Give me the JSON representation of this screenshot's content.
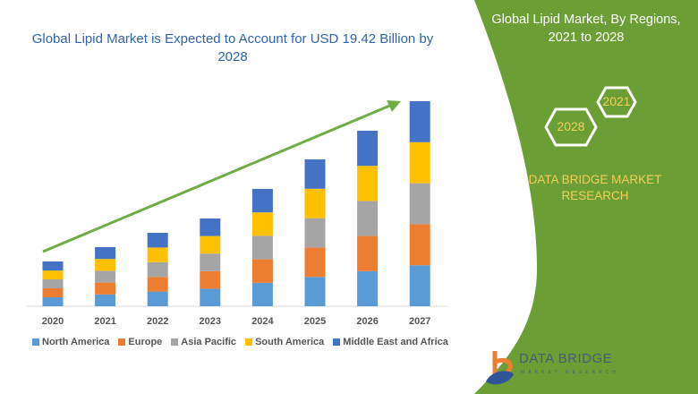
{
  "header": {
    "title": "Global Lipid Market is Expected to Account for USD 19.42 Billion by 2028"
  },
  "side_panel": {
    "title": "Global Lipid Market, By Regions, 2021 to 2028",
    "hex_start": "2021",
    "hex_end": "2028",
    "brand": "DATA BRIDGE MARKET RESEARCH",
    "logo_text": "DATA BRIDGE",
    "logo_sub": "MARKET RESEARCH",
    "color": "#6c9e36"
  },
  "chart_data": {
    "type": "bar",
    "stacked": true,
    "title": "Global Lipid Market is Expected to Account for USD 19.42 Billion by 2028",
    "xlabel": "",
    "ylabel": "",
    "y_axis_shown": false,
    "grid": false,
    "legend_position": "bottom",
    "trend_arrow": true,
    "categories": [
      "2020",
      "2021",
      "2022",
      "2023",
      "2024",
      "2025",
      "2026",
      "2027"
    ],
    "series": [
      {
        "name": "North America",
        "color": "#5b9bd5",
        "values": [
          10,
          13.2,
          16.4,
          19.6,
          26.2,
          32.8,
          39.2,
          45.8
        ]
      },
      {
        "name": "Europe",
        "color": "#ed7d31",
        "values": [
          10,
          13.2,
          16.4,
          19.6,
          26.2,
          32.8,
          39.2,
          45.8
        ]
      },
      {
        "name": "Asia Pacific",
        "color": "#a5a5a5",
        "values": [
          10,
          13.2,
          16.4,
          19.6,
          26.2,
          32.8,
          39.2,
          45.8
        ]
      },
      {
        "name": "South America",
        "color": "#ffc000",
        "values": [
          10,
          13.2,
          16.4,
          19.6,
          26.2,
          32.8,
          39.2,
          45.8
        ]
      },
      {
        "name": "Middle East and Africa",
        "color": "#4472c4",
        "values": [
          10,
          13.2,
          16.4,
          19.6,
          26.2,
          32.8,
          39.2,
          45.8
        ]
      }
    ]
  }
}
